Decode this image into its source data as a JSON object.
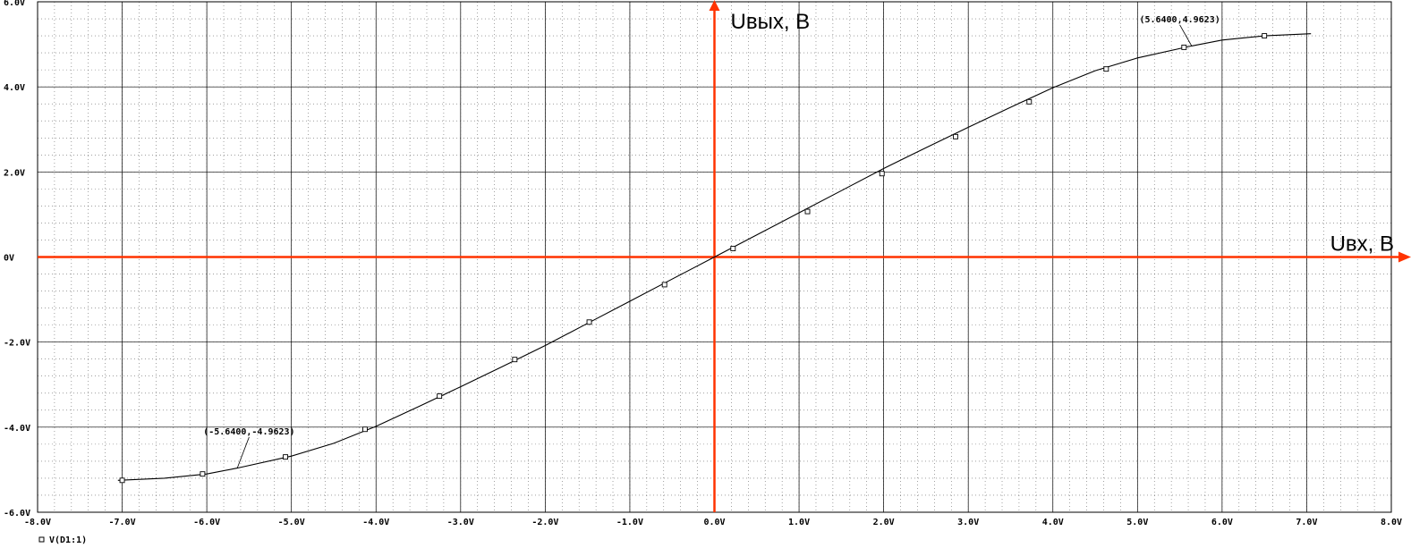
{
  "chart_data": {
    "type": "line",
    "title": "",
    "xlabel": "Uвх, В",
    "ylabel": "Uвых, В",
    "xlim": [
      -8,
      8
    ],
    "ylim": [
      -6,
      6
    ],
    "grid": true,
    "x_ticks": [
      -8,
      -7,
      -6,
      -5,
      -4,
      -3,
      -2,
      -1,
      0,
      1,
      2,
      3,
      4,
      5,
      6,
      7,
      8
    ],
    "x_tick_labels": [
      "-8.0V",
      "-7.0V",
      "-6.0V",
      "-5.0V",
      "-4.0V",
      "-3.0V",
      "-2.0V",
      "-1.0V",
      "0.0V",
      "1.0V",
      "2.0V",
      "3.0V",
      "4.0V",
      "5.0V",
      "6.0V",
      "7.0V",
      "8.0V"
    ],
    "y_ticks": [
      -6,
      -4,
      -2,
      0,
      2,
      4,
      6
    ],
    "y_tick_labels": [
      "-6.0V",
      "-4.0V",
      "-2.0V",
      "0V",
      "2.0V",
      "4.0V",
      "6.0V"
    ],
    "axis_color": "#ff3300",
    "series_color": "#000000",
    "series": [
      {
        "name": "V(D1:1)",
        "marker": "square",
        "x": [
          -7.05,
          -6.5,
          -6.0,
          -5.64,
          -5.0,
          -4.5,
          -4.0,
          -3.5,
          -3.0,
          -2.5,
          -2.0,
          -1.5,
          -1.0,
          -0.5,
          0.0,
          0.5,
          1.0,
          1.5,
          2.0,
          2.5,
          3.0,
          3.5,
          4.0,
          4.5,
          5.0,
          5.64,
          6.0,
          6.5,
          7.05
        ],
        "y": [
          -5.25,
          -5.2,
          -5.1,
          -4.9623,
          -4.68,
          -4.38,
          -3.98,
          -3.52,
          -3.05,
          -2.57,
          -2.08,
          -1.56,
          -1.04,
          -0.52,
          0.0,
          0.52,
          1.04,
          1.56,
          2.08,
          2.57,
          3.05,
          3.52,
          3.98,
          4.38,
          4.68,
          4.9623,
          5.1,
          5.2,
          5.25
        ]
      }
    ],
    "markers": [
      {
        "x": -7.0,
        "y": -5.25
      },
      {
        "x": -6.05,
        "y": -5.1
      },
      {
        "x": -5.07,
        "y": -4.7
      },
      {
        "x": -4.13,
        "y": -4.05
      },
      {
        "x": -3.25,
        "y": -3.27
      },
      {
        "x": -2.36,
        "y": -2.41
      },
      {
        "x": -1.48,
        "y": -1.53
      },
      {
        "x": -0.59,
        "y": -0.65
      },
      {
        "x": 0.22,
        "y": 0.2
      },
      {
        "x": 1.1,
        "y": 1.07
      },
      {
        "x": 1.98,
        "y": 1.96
      },
      {
        "x": 2.85,
        "y": 2.83
      },
      {
        "x": 3.72,
        "y": 3.65
      },
      {
        "x": 4.63,
        "y": 4.42
      },
      {
        "x": 5.55,
        "y": 4.93
      },
      {
        "x": 6.5,
        "y": 5.2
      }
    ],
    "annotations": [
      {
        "text": "(5.6400,4.9623)",
        "x": 5.64,
        "y": 4.9623,
        "label_x": 5.5,
        "label_y": 5.52
      },
      {
        "text": "(-5.6400,-4.9623)",
        "x": -5.64,
        "y": -4.9623,
        "label_x": -5.5,
        "label_y": -4.17
      }
    ],
    "legend": {
      "marker": "□",
      "label": "V(D1:1)",
      "position": "bottom-left"
    }
  }
}
